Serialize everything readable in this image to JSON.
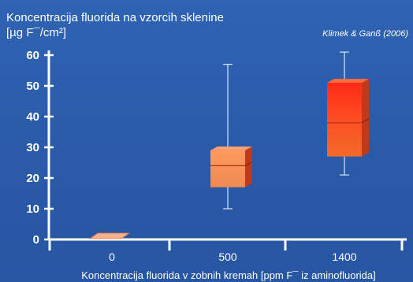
{
  "chart_data": {
    "type": "box",
    "title_line1": "Koncentracija fluorida na vzorcih sklenine",
    "title_line2": "[µg F¯/cm²]",
    "source": "Klimek & Ganß (2006)",
    "xlabel": "Koncentracija fluorida v zobnih kremah [ppm F¯ iz aminofluorida]",
    "ylabel": "",
    "ylim": [
      0,
      60
    ],
    "yticks": [
      0,
      10,
      20,
      30,
      40,
      50,
      60
    ],
    "categories": [
      "0",
      "500",
      "1400"
    ],
    "boxes": [
      {
        "category": "0",
        "min": 0,
        "q1": 0,
        "median": 0,
        "q3": 0.5,
        "max": 0.5
      },
      {
        "category": "500",
        "min": 10,
        "q1": 17,
        "median": 24,
        "q3": 29,
        "max": 57
      },
      {
        "category": "1400",
        "min": 21,
        "q1": 27,
        "median": 38,
        "q3": 51,
        "max": 61
      }
    ],
    "grid": false,
    "colors": {
      "background": "#2a5aa8",
      "axis": "#ffffff",
      "box_low": "#f2a06a",
      "box_mid": "#ff7a3a",
      "box_high": "#ff3b1e",
      "box_side": "#c9471f",
      "box_top": "#ffb07a"
    }
  }
}
